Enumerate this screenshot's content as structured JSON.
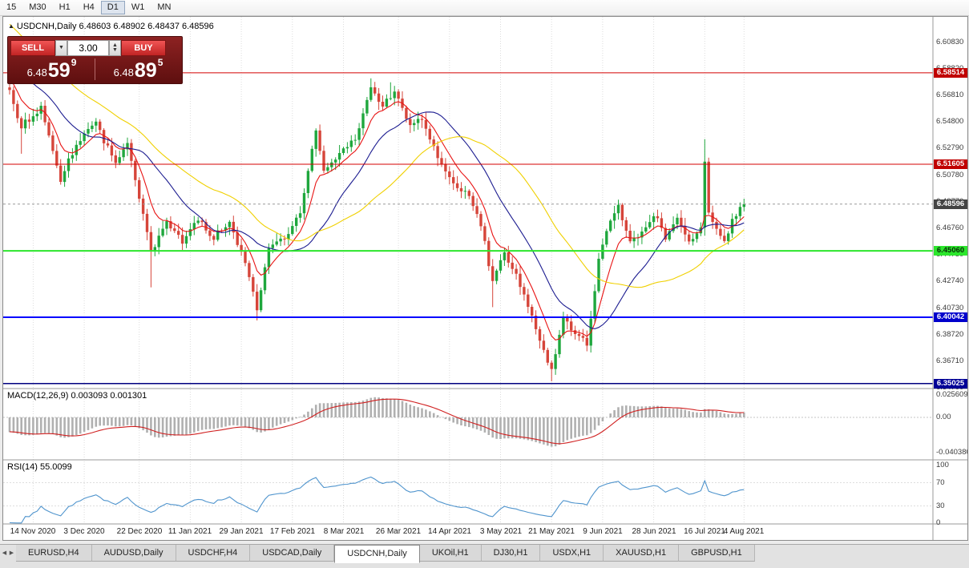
{
  "toolbar": {
    "periods": [
      "15",
      "M30",
      "H1",
      "H4",
      "D1",
      "W1",
      "MN"
    ],
    "active_period": "D1"
  },
  "chart": {
    "title": "USDCNH,Daily 6.48603 6.48902 6.48437 6.48596"
  },
  "trade_panel": {
    "sell_label": "SELL",
    "buy_label": "BUY",
    "volume": "3.00",
    "sell_price": {
      "prefix": "6.48",
      "big": "59",
      "sup": "9"
    },
    "buy_price": {
      "prefix": "6.48",
      "big": "89",
      "sup": "5"
    }
  },
  "price_axis": {
    "top_value": 6.6275,
    "bottom_value": 6.3465,
    "labels": [
      "6.60830",
      "6.58820",
      "6.56810",
      "6.54800",
      "6.52790",
      "6.50780",
      "6.48770",
      "6.46760",
      "6.44750",
      "6.42740",
      "6.40730",
      "6.38720",
      "6.36710",
      "6.34700"
    ]
  },
  "hlines": [
    {
      "price": 6.58514,
      "label": "6.58514",
      "line_color": "#d40000",
      "badge_bg": "#c00000",
      "badge_fg": "#ffffff",
      "width": 1
    },
    {
      "price": 6.51605,
      "label": "6.51605",
      "line_color": "#d40000",
      "badge_bg": "#c00000",
      "badge_fg": "#ffffff",
      "width": 1
    },
    {
      "price": 6.4506,
      "label": "6.45060",
      "line_color": "#2ce62c",
      "badge_bg": "#2ce62c",
      "badge_fg": "#062e06",
      "width": 2
    },
    {
      "price": 6.40042,
      "label": "6.40042",
      "line_color": "#0000ff",
      "badge_bg": "#0000cc",
      "badge_fg": "#ffffff",
      "width": 2
    },
    {
      "price": 6.35025,
      "label": "6.35025",
      "line_color": "#000080",
      "badge_bg": "#000096",
      "badge_fg": "#ffffff",
      "width": 1.5
    }
  ],
  "current_price": {
    "label": "6.48596",
    "value": 6.48596,
    "badge_bg": "#444444",
    "badge_fg": "#ffffff"
  },
  "macd": {
    "header": "MACD(12,26,9) 0.003093 0.001301",
    "axis_labels": [
      {
        "text": "0.025609",
        "value": 0.025609
      },
      {
        "text": "0.00",
        "value": 0
      },
      {
        "text": "-0.040380",
        "value": -0.04038
      }
    ]
  },
  "rsi": {
    "header": "RSI(14) 55.0099",
    "axis_labels": [
      {
        "text": "100",
        "value": 100
      },
      {
        "text": "70",
        "value": 70
      },
      {
        "text": "30",
        "value": 30
      },
      {
        "text": "0",
        "value": 0
      }
    ],
    "levels": [
      70,
      30
    ]
  },
  "date_axis": {
    "ticks": [
      {
        "index": 6,
        "text": "14 Nov 2020"
      },
      {
        "index": 19,
        "text": "3 Dec 2020"
      },
      {
        "index": 33,
        "text": "22 Dec 2020"
      },
      {
        "index": 46,
        "text": "11 Jan 2021"
      },
      {
        "index": 59,
        "text": "29 Jan 2021"
      },
      {
        "index": 72,
        "text": "17 Feb 2021"
      },
      {
        "index": 85,
        "text": "8 Mar 2021"
      },
      {
        "index": 99,
        "text": "26 Mar 2021"
      },
      {
        "index": 112,
        "text": "14 Apr 2021"
      },
      {
        "index": 125,
        "text": "3 May 2021"
      },
      {
        "index": 138,
        "text": "21 May 2021"
      },
      {
        "index": 151,
        "text": "9 Jun 2021"
      },
      {
        "index": 164,
        "text": "28 Jun 2021"
      },
      {
        "index": 177,
        "text": "16 Jul 2021"
      },
      {
        "index": 187,
        "text": "4 Aug 2021"
      }
    ]
  },
  "tabs": {
    "items": [
      "EURUSD,H4",
      "AUDUSD,Daily",
      "USDCHF,H4",
      "USDCAD,Daily",
      "USDCNH,Daily",
      "UKOil,H1",
      "DJ30,H1",
      "USDX,H1",
      "XAUUSD,H1",
      "GBPUSD,H1"
    ],
    "active_index": 4
  },
  "chart_data": {
    "type": "candlestick",
    "symbol": "USDCNH",
    "timeframe": "Daily",
    "ohlc_display": {
      "open": 6.48603,
      "high": 6.48902,
      "low": 6.48437,
      "close": 6.48596
    },
    "close_keyframes": [
      [
        -45,
        6.685
      ],
      [
        -20,
        6.625
      ],
      [
        0,
        6.57
      ],
      [
        3,
        6.545
      ],
      [
        8,
        6.558
      ],
      [
        13,
        6.505
      ],
      [
        17,
        6.532
      ],
      [
        22,
        6.547
      ],
      [
        27,
        6.515
      ],
      [
        30,
        6.534
      ],
      [
        34,
        6.478
      ],
      [
        36,
        6.448
      ],
      [
        40,
        6.474
      ],
      [
        44,
        6.457
      ],
      [
        48,
        6.474
      ],
      [
        52,
        6.461
      ],
      [
        56,
        6.472
      ],
      [
        60,
        6.442
      ],
      [
        63,
        6.407
      ],
      [
        66,
        6.452
      ],
      [
        70,
        6.461
      ],
      [
        74,
        6.478
      ],
      [
        78,
        6.543
      ],
      [
        80,
        6.512
      ],
      [
        84,
        6.525
      ],
      [
        88,
        6.536
      ],
      [
        92,
        6.573
      ],
      [
        95,
        6.561
      ],
      [
        98,
        6.571
      ],
      [
        102,
        6.546
      ],
      [
        105,
        6.552
      ],
      [
        109,
        6.521
      ],
      [
        113,
        6.501
      ],
      [
        117,
        6.491
      ],
      [
        120,
        6.47
      ],
      [
        123,
        6.427
      ],
      [
        126,
        6.449
      ],
      [
        129,
        6.431
      ],
      [
        133,
        6.401
      ],
      [
        136,
        6.376
      ],
      [
        138,
        6.361
      ],
      [
        141,
        6.399
      ],
      [
        144,
        6.389
      ],
      [
        147,
        6.379
      ],
      [
        150,
        6.443
      ],
      [
        152,
        6.464
      ],
      [
        155,
        6.486
      ],
      [
        158,
        6.456
      ],
      [
        161,
        6.466
      ],
      [
        164,
        6.479
      ],
      [
        167,
        6.461
      ],
      [
        170,
        6.476
      ],
      [
        173,
        6.456
      ],
      [
        176,
        6.47
      ],
      [
        177,
        6.516
      ],
      [
        178,
        6.481
      ],
      [
        180,
        6.466
      ],
      [
        182,
        6.457
      ],
      [
        184,
        6.474
      ],
      [
        187,
        6.486
      ]
    ],
    "wick_overrides": [
      {
        "i": 3,
        "l": 6.524
      },
      {
        "i": 36,
        "l": 6.423
      },
      {
        "i": 63,
        "l": 6.398
      },
      {
        "i": 92,
        "h": 6.581
      },
      {
        "i": 97,
        "h": 6.578
      },
      {
        "i": 123,
        "l": 6.408
      },
      {
        "i": 138,
        "l": 6.352
      },
      {
        "i": 177,
        "h": 6.535
      }
    ],
    "ma": [
      {
        "name": "fast",
        "type": "ema",
        "period": 8,
        "color": "#e81212"
      },
      {
        "name": "medium",
        "type": "sma",
        "period": 20,
        "color": "#1c1c90"
      },
      {
        "name": "slow",
        "type": "sma",
        "period": 40,
        "color": "#f0d000"
      }
    ],
    "macd_params": [
      12,
      26,
      9
    ],
    "rsi_period": 14,
    "colors": {
      "up": "#1fa73d",
      "down": "#d6453a",
      "macd_hist": "#b0b0b0",
      "macd_signal": "#d02020",
      "rsi_line": "#4f94cd",
      "grid": "#dcdcdc"
    }
  }
}
